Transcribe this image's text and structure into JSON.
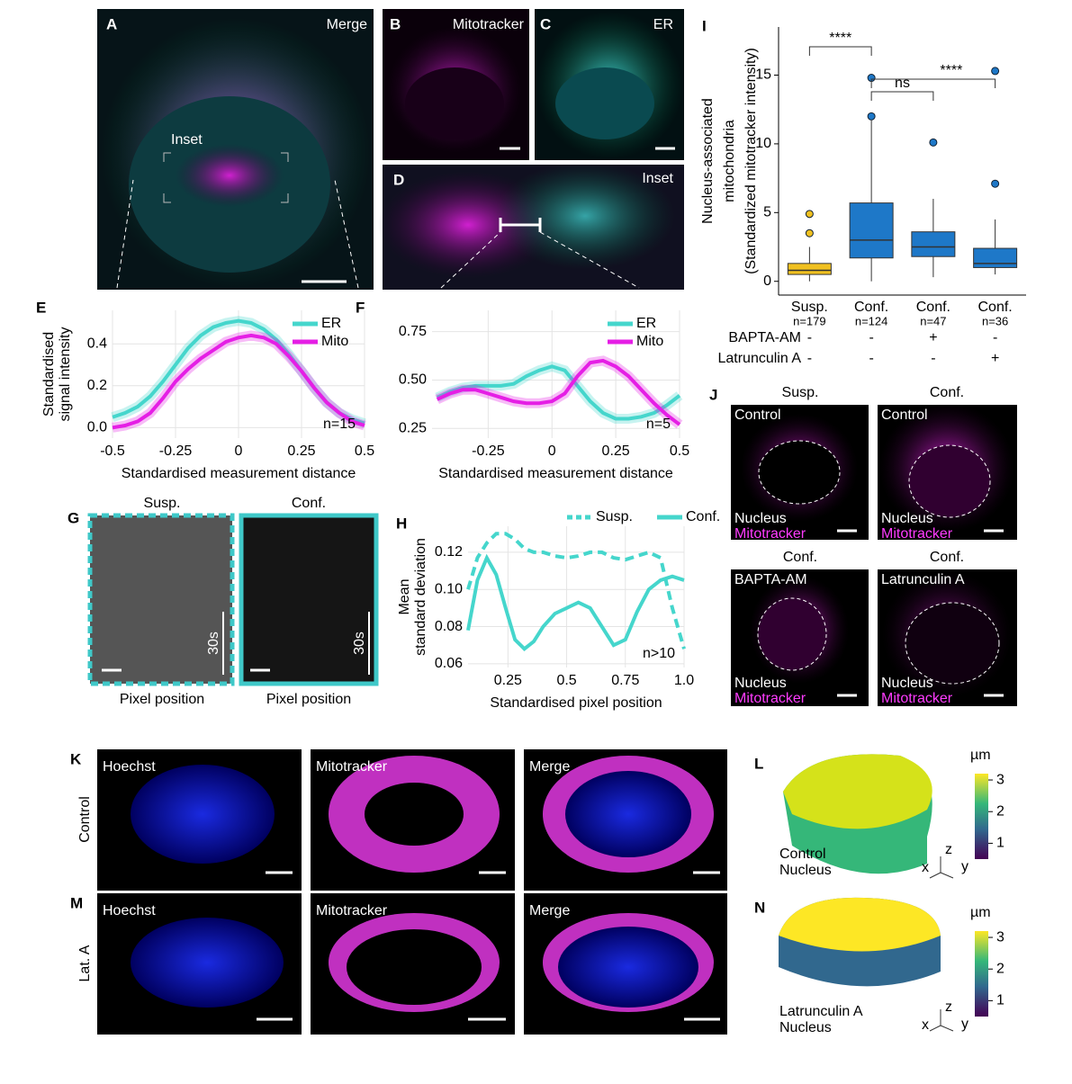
{
  "panels": {
    "A": {
      "label": "A",
      "title": "Merge",
      "inset": "Inset"
    },
    "B": {
      "label": "B",
      "title": "Mitotracker"
    },
    "C": {
      "label": "C",
      "title": "ER"
    },
    "D": {
      "label": "D",
      "title": "Inset"
    },
    "G": {
      "label": "G",
      "titles": [
        "Susp.",
        "Conf."
      ],
      "scale_labels": [
        "30s",
        "30s"
      ],
      "xlabels": [
        "Pixel position",
        "Pixel position"
      ]
    },
    "J": {
      "label": "J",
      "images": [
        {
          "condition": "Susp.",
          "treatment": "Control",
          "nucleus": "Nucleus",
          "stain": "Mitotracker"
        },
        {
          "condition": "Conf.",
          "treatment": "Control",
          "nucleus": "Nucleus",
          "stain": "Mitotracker"
        },
        {
          "condition": "Conf.",
          "treatment": "BAPTA-AM",
          "nucleus": "Nucleus",
          "stain": "Mitotracker"
        },
        {
          "condition": "Conf.",
          "treatment": "Latrunculin A",
          "nucleus": "Nucleus",
          "stain": "Mitotracker"
        }
      ]
    },
    "K": {
      "label": "K",
      "row": "Control",
      "channels": [
        "Hoechst",
        "Mitotracker",
        "Merge"
      ]
    },
    "M": {
      "label": "M",
      "row": "Lat. A",
      "channels": [
        "Hoechst",
        "Mitotracker",
        "Merge"
      ]
    },
    "L": {
      "label": "L",
      "unit": "µm",
      "caption": [
        "Control",
        "Nucleus"
      ],
      "axes": [
        "x",
        "z",
        "y"
      ],
      "colorbar": {
        "lim": [
          0.5,
          3.2
        ],
        "ticks": [
          1,
          2,
          3
        ]
      }
    },
    "N": {
      "label": "N",
      "unit": "µm",
      "caption": [
        "Latrunculin A",
        "Nucleus"
      ],
      "axes": [
        "x",
        "z",
        "y"
      ],
      "colorbar": {
        "lim": [
          0.5,
          3.2
        ],
        "ticks": [
          1,
          2,
          3
        ]
      }
    }
  },
  "chart_data": [
    {
      "type": "line",
      "panel": "E",
      "ylabel": [
        "Standardised",
        "signal intensity"
      ],
      "xlabel": "Standardised measurement distance",
      "annotation": "n=15",
      "xlim": [
        -0.5,
        0.5
      ],
      "ylim": [
        -0.05,
        0.56
      ],
      "xticks": [
        -0.5,
        -0.25,
        0,
        0.25,
        0.5
      ],
      "yticks": [
        {
          "value": 0,
          "label": "0.0"
        },
        0.2,
        0.4
      ],
      "grid": true,
      "legend": "top-right",
      "x": [
        -0.5,
        -0.45,
        -0.4,
        -0.35,
        -0.3,
        -0.25,
        -0.2,
        -0.15,
        -0.1,
        -0.05,
        0,
        0.05,
        0.1,
        0.15,
        0.2,
        0.25,
        0.3,
        0.35,
        0.4,
        0.45,
        0.5
      ],
      "series": [
        {
          "name": "ER",
          "color": "#45d6cc",
          "values": [
            0.05,
            0.07,
            0.1,
            0.15,
            0.22,
            0.3,
            0.38,
            0.44,
            0.48,
            0.5,
            0.51,
            0.5,
            0.47,
            0.42,
            0.35,
            0.27,
            0.19,
            0.12,
            0.07,
            0.04,
            0.02
          ]
        },
        {
          "name": "Mito",
          "color": "#e51ee5",
          "values": [
            0.0,
            0.01,
            0.03,
            0.07,
            0.14,
            0.22,
            0.28,
            0.33,
            0.37,
            0.41,
            0.43,
            0.44,
            0.43,
            0.4,
            0.34,
            0.27,
            0.19,
            0.12,
            0.07,
            0.03,
            0.01
          ]
        }
      ]
    },
    {
      "type": "line",
      "panel": "F",
      "xlabel": "Standardised measurement distance",
      "annotation": "n=5",
      "xlim": [
        -0.47,
        0.5
      ],
      "ylim": [
        0.2,
        0.86
      ],
      "xticks": [
        -0.25,
        0,
        0.25,
        0.5
      ],
      "yticks": [
        0.25,
        {
          "value": 0.5,
          "label": "0.50"
        },
        0.75
      ],
      "grid": true,
      "legend": "top-right",
      "x": [
        -0.45,
        -0.4,
        -0.35,
        -0.3,
        -0.25,
        -0.2,
        -0.15,
        -0.1,
        -0.05,
        0,
        0.05,
        0.1,
        0.15,
        0.2,
        0.25,
        0.3,
        0.35,
        0.4,
        0.45,
        0.5
      ],
      "series": [
        {
          "name": "ER",
          "color": "#45d6cc",
          "values": [
            0.41,
            0.44,
            0.46,
            0.47,
            0.47,
            0.47,
            0.48,
            0.52,
            0.55,
            0.57,
            0.55,
            0.47,
            0.39,
            0.33,
            0.3,
            0.3,
            0.31,
            0.33,
            0.37,
            0.42
          ]
        },
        {
          "name": "Mito",
          "color": "#e51ee5",
          "values": [
            0.4,
            0.43,
            0.45,
            0.45,
            0.43,
            0.41,
            0.39,
            0.38,
            0.38,
            0.39,
            0.43,
            0.52,
            0.59,
            0.6,
            0.57,
            0.52,
            0.45,
            0.38,
            0.32,
            0.27
          ]
        }
      ]
    },
    {
      "type": "line",
      "panel": "H",
      "ylabel": [
        "Mean",
        "standard deviation"
      ],
      "xlabel": "Standardised pixel position",
      "annotation": "n>10",
      "xlim": [
        0.08,
        1.0
      ],
      "ylim": [
        0.058,
        0.134
      ],
      "xticks": [
        0.25,
        0.5,
        0.75,
        {
          "value": 1,
          "label": "1.0"
        }
      ],
      "yticks": [
        0.06,
        0.08,
        {
          "value": 0.1,
          "label": "0.10"
        },
        0.12
      ],
      "grid": true,
      "legend": "top",
      "x": [
        0.08,
        0.12,
        0.16,
        0.2,
        0.24,
        0.28,
        0.32,
        0.36,
        0.4,
        0.45,
        0.5,
        0.55,
        0.6,
        0.65,
        0.7,
        0.75,
        0.8,
        0.85,
        0.9,
        0.95,
        1.0
      ],
      "series": [
        {
          "name": "Susp.",
          "color": "#45d6cc",
          "dashed": true,
          "values": [
            0.1,
            0.117,
            0.125,
            0.13,
            0.13,
            0.127,
            0.122,
            0.12,
            0.12,
            0.118,
            0.117,
            0.118,
            0.12,
            0.12,
            0.117,
            0.116,
            0.118,
            0.12,
            0.117,
            0.09,
            0.068
          ]
        },
        {
          "name": "Conf.",
          "color": "#45d6cc",
          "values": [
            0.078,
            0.105,
            0.117,
            0.108,
            0.09,
            0.073,
            0.068,
            0.072,
            0.08,
            0.087,
            0.09,
            0.093,
            0.09,
            0.08,
            0.07,
            0.073,
            0.088,
            0.1,
            0.105,
            0.107,
            0.105
          ]
        }
      ]
    },
    {
      "type": "box",
      "panel": "I",
      "ylabel": [
        "Nucleus-associated",
        "mitochondria",
        "(Standardized mitotracker intensity)"
      ],
      "ylim": [
        -1,
        18.5
      ],
      "yticks": [
        0,
        5,
        10,
        15
      ],
      "categories": [
        "Susp.",
        "Conf.",
        "Conf.",
        "Conf."
      ],
      "n_labels": [
        "n=179",
        "n=124",
        "n=47",
        "n=36"
      ],
      "colors": [
        "#f0c020",
        "#1e78c8",
        "#1e78c8",
        "#1e78c8"
      ],
      "boxes": [
        {
          "low": 0,
          "q1": 0.5,
          "median": 0.8,
          "q3": 1.3,
          "high": 2.5,
          "outliers": [
            3.5,
            4.9
          ]
        },
        {
          "low": 0,
          "q1": 1.7,
          "median": 3.0,
          "q3": 5.7,
          "high": 11.7,
          "outliers": [
            12,
            14.8
          ]
        },
        {
          "low": 0.3,
          "q1": 1.8,
          "median": 2.5,
          "q3": 3.6,
          "high": 6.0,
          "outliers": [
            10.1
          ]
        },
        {
          "low": 0.5,
          "q1": 1.0,
          "median": 1.3,
          "q3": 2.4,
          "high": 4.5,
          "outliers": [
            7.1,
            15.3
          ]
        }
      ],
      "rows": [
        {
          "name": "BAPTA-AM",
          "marks": [
            "-",
            "-",
            "+",
            "-"
          ]
        },
        {
          "name": "Latrunculin A",
          "marks": [
            "-",
            "-",
            "-",
            "+"
          ]
        }
      ],
      "significance": [
        "****",
        "ns",
        "****"
      ]
    }
  ]
}
